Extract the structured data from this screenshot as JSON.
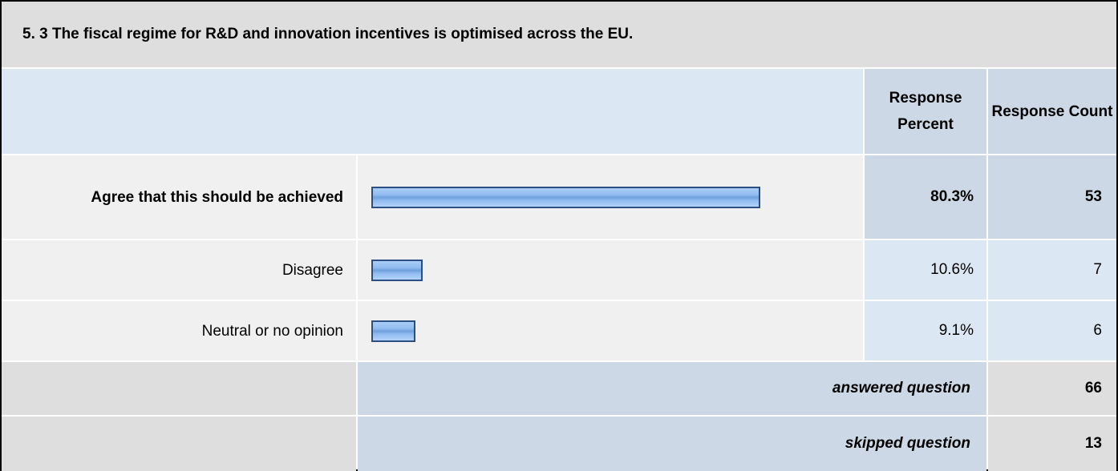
{
  "question": {
    "title": "5. 3 The fiscal regime for R&D and innovation incentives is optimised across the EU."
  },
  "header": {
    "response_percent": "Response Percent",
    "response_count": "Response Count"
  },
  "answers": [
    {
      "label": "Agree that this should be achieved",
      "percent": "80.3%",
      "percent_value": 80.3,
      "count": "53"
    },
    {
      "label": "Disagree",
      "percent": "10.6%",
      "percent_value": 10.6,
      "count": "7"
    },
    {
      "label": "Neutral or no opinion",
      "percent": "9.1%",
      "percent_value": 9.1,
      "count": "6"
    }
  ],
  "summary": {
    "answered_label": "answered question",
    "answered_value": "66",
    "skipped_label": "skipped question",
    "skipped_value": "13"
  },
  "colors": {
    "title_bg": "#dedede",
    "header_bg": "#dce7f4",
    "header_col_bg": "#ccd8e6",
    "bar_border": "#2b4f82",
    "bar_fill": "#92bdf0"
  }
}
